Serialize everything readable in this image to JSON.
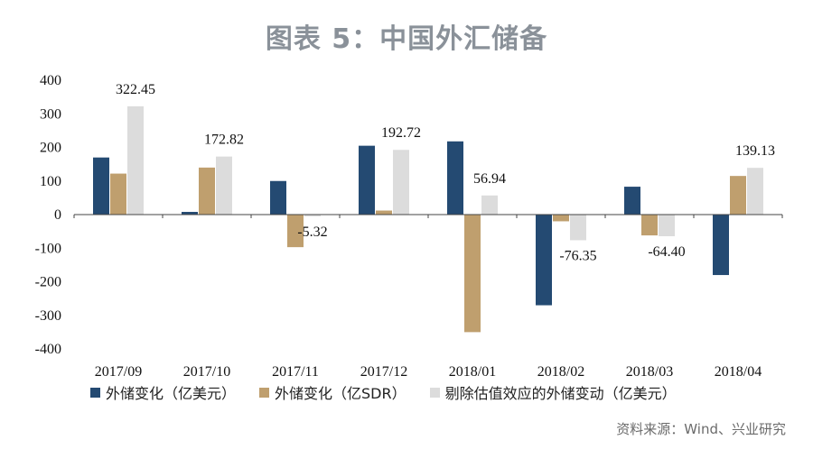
{
  "chart_data": {
    "type": "bar",
    "title": "图表 5：中国外汇储备",
    "categories": [
      "2017/09",
      "2017/10",
      "2017/11",
      "2017/12",
      "2018/01",
      "2018/02",
      "2018/03",
      "2018/04"
    ],
    "ylim": [
      -400,
      400
    ],
    "yticks": [
      400,
      300,
      200,
      100,
      0,
      -100,
      -200,
      -300,
      -400
    ],
    "series": [
      {
        "name": "外储变化（亿美元）",
        "color": "#244a72",
        "values": [
          170,
          8,
          100,
          205,
          218,
          -270,
          83,
          -180
        ]
      },
      {
        "name": "外储变化（亿SDR）",
        "color": "#bf9f6e",
        "values": [
          122,
          140,
          -97,
          12,
          -350,
          -20,
          -62,
          115
        ]
      },
      {
        "name": "剔除估值效应的外储变动（亿美元）",
        "color": "#dcdcdc",
        "values": [
          322.45,
          172.82,
          -5.32,
          192.72,
          56.94,
          -76.35,
          -64.4,
          139.13
        ]
      }
    ],
    "data_labels": [
      "322.45",
      "172.82",
      "-5.32",
      "192.72",
      "56.94",
      "-76.35",
      "-64.40",
      "139.13"
    ],
    "legend_position": "bottom",
    "source": "资料来源：Wind、兴业研究"
  }
}
